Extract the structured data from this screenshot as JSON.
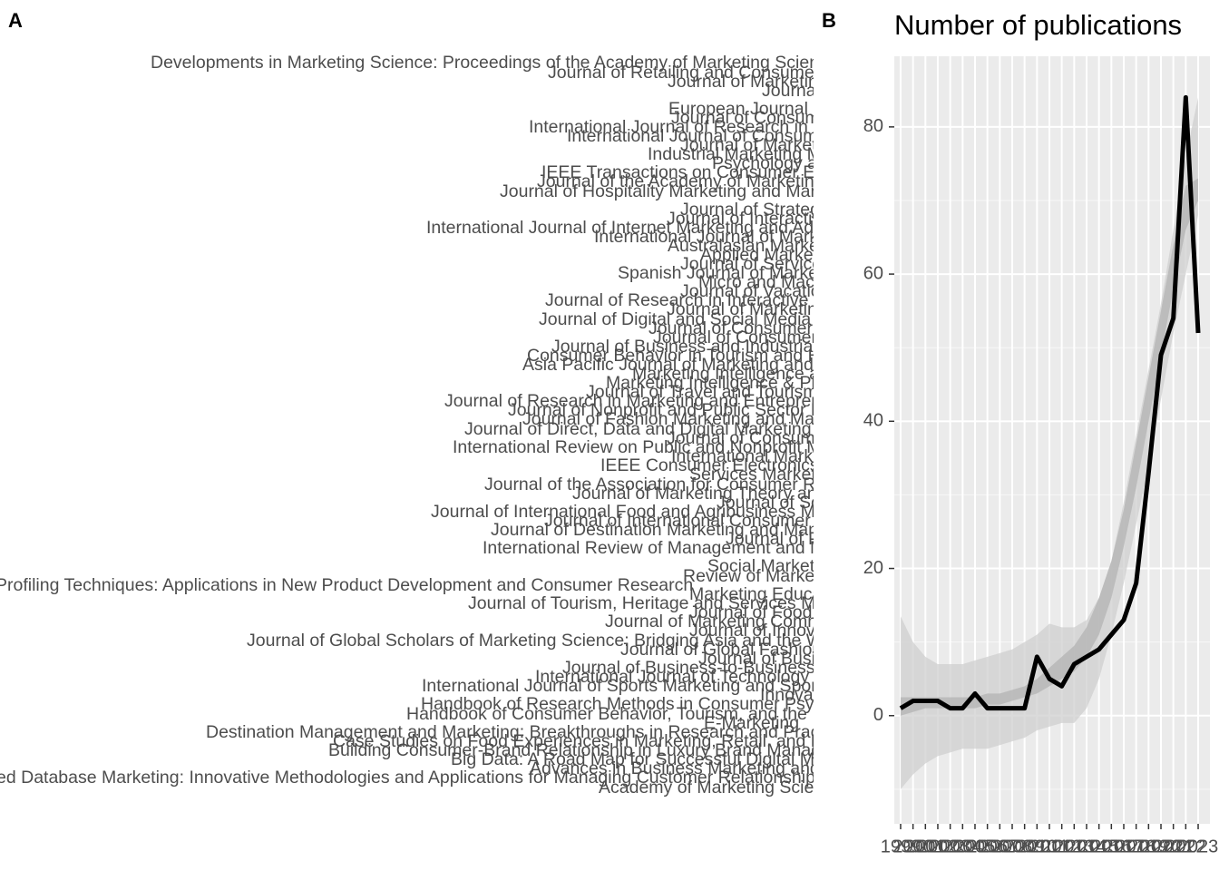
{
  "chart_data": [
    {
      "type": "text",
      "label": "A",
      "labels": [
        "Developments in Marketing Science: Proceedings of the Academy of Marketing Science",
        "Journal of Retailing and Consumer Services",
        "Journal of Marketing",
        "Journal of Business Research",
        "European Journal of Marketing",
        "Journal of Consumer Research",
        "International Journal of Research in Marketing",
        "International Journal of Consumer Studies",
        "Journal of Marketing Management",
        "Industrial Marketing Management",
        "Psychology and Marketing",
        "IEEE Transactions on Consumer Electronics",
        "Journal of the Academy of Marketing Science",
        "Journal of Hospitality Marketing and Management",
        "Journal of Strategic Marketing",
        "Journal of Interactive Marketing",
        "International Journal of Internet Marketing and Advertising",
        "International Journal of Market Research",
        "Australasian Marketing Journal",
        "Applied Marketing Analytics",
        "Journal of Services Marketing",
        "Spanish Journal of Marketing - ESIC",
        "Micro and Macro Marketing",
        "Journal of Vacation Marketing",
        "Journal of Research in Interactive Marketing",
        "Journal of Marketing Analytics",
        "Journal of Digital and Social Media Marketing",
        "Journal of Consumer Marketing",
        "Journal of Consumer Behaviour",
        "Journal of Business and Industrial Marketing",
        "Consumer Behavior in Tourism and Hospitality",
        "Asia Pacific Journal of Marketing and Logistics",
        "Marketing Intelligence and Planning",
        "Marketing Intelligence & Planning",
        "Journal of Travel and Tourism Marketing",
        "Journal of Research in Marketing and Entrepreneurship",
        "Journal of Nonprofit and Public Sector Marketing",
        "Journal of Fashion Marketing and Management",
        "Journal of Direct, Data and Digital Marketing Practice",
        "Journal of Consumer Psychology",
        "International Review on Public and Nonprofit Marketing",
        "International Marketing Review",
        "IEEE Consumer Electronics Magazine",
        "Services Marketing Quarterly",
        "Journal of the Association for Consumer Research",
        "Journal of Marketing Theory and Practice",
        "Journal of Social Marketing",
        "Journal of International Food and Agribusiness Marketing",
        "Journal of International Consumer Marketing",
        "Journal of Destination Marketing and Management",
        "Journal of Product and Brand Management",
        "International Review of Management and Marketing",
        "Review of Marketing Science",
        "Social Marketing Quarterly",
        "Profiling Techniques: Applications in New Product Development and Consumer Research",
        "Marketing Education Review",
        "Journal of Tourism, Heritage and Services Marketing",
        "Journal of Food Products Marketing",
        "Journal of Marketing Communications",
        "Journal of Innovation and Knowledge",
        "Journal of Global Scholars of Marketing Science: Bridging Asia and the World",
        "Journal of Global Fashion Marketing",
        "Journal of Business Economics",
        "Journal of Business-to-Business Marketing",
        "International Journal of Technology Marketing",
        "International Journal of Sports Marketing and Sponsorship",
        "Innovative Marketing",
        "Handbook of Research Methods in Consumer Psychology",
        "Handbook of Consumer Behavior, Tourism, and the Internet",
        "E-Marketing",
        "Destination Management and Marketing: Breakthroughs in Research and Practice",
        "Case Studies on Food Experiences in Marketing, Retail, and Events",
        "Building Consumer-Brand Relationship in Luxury Brand Management",
        "Big Data: A Road Map for Successful Digital Marketing",
        "Advances in Business Marketing and Purchasing",
        "ed Database Marketing: Innovative Methodologies and Applications for Managing Customer Relationships",
        "Academy of Marketing Science Review"
      ]
    },
    {
      "type": "line",
      "label": "B",
      "title": "Number of publications",
      "x": [
        1999,
        2000,
        2001,
        2002,
        2003,
        2004,
        2005,
        2006,
        2007,
        2008,
        2009,
        2010,
        2011,
        2012,
        2013,
        2014,
        2015,
        2016,
        2017,
        2018,
        2019,
        2020,
        2021,
        2022,
        2023
      ],
      "xlim": [
        1998.49,
        2023.95
      ],
      "xticks": [
        1999,
        2000,
        2001,
        2002,
        2003,
        2004,
        2005,
        2006,
        2007,
        2008,
        2009,
        2010,
        2011,
        2012,
        2013,
        2014,
        2015,
        2016,
        2017,
        2018,
        2019,
        2020,
        2021,
        2022,
        2023
      ],
      "ylim": [
        -14.7,
        89.6
      ],
      "yticks": [
        0,
        20,
        40,
        60,
        80
      ],
      "grid": true,
      "background": "#ebebeb",
      "bands": [
        {
          "color": "#cfcfcf",
          "lower": [
            -10,
            -8,
            -6.5,
            -5.5,
            -5,
            -4.5,
            -4.5,
            -4.5,
            -4,
            -3.5,
            -3,
            -2,
            -1.5,
            -1,
            -1,
            1,
            5,
            11,
            18,
            26,
            34,
            43,
            52,
            60,
            68
          ],
          "upper": [
            13.5,
            10,
            8,
            7,
            7,
            7,
            7.5,
            8,
            8.5,
            9,
            10,
            11,
            12.5,
            12,
            12,
            13,
            16,
            21,
            29,
            38,
            47,
            56,
            66,
            76,
            84
          ]
        },
        {
          "color": "#b3b3b3",
          "lower": [
            0,
            0.5,
            1,
            1,
            1,
            1,
            1,
            1.5,
            1.5,
            2,
            2.5,
            3,
            4,
            5,
            6,
            8,
            11,
            16,
            23,
            31,
            40,
            49,
            58,
            66,
            70
          ],
          "upper": [
            2.5,
            2.5,
            2.5,
            2.5,
            2.5,
            2.5,
            2.5,
            3,
            3,
            3.5,
            4,
            5,
            6.5,
            8,
            9.5,
            12,
            16,
            21,
            28,
            37,
            46,
            55,
            64,
            72,
            73
          ]
        }
      ],
      "series": [
        {
          "color": "#000000",
          "values": [
            1,
            2,
            2,
            2,
            1,
            1,
            3,
            1,
            1,
            1,
            1,
            8,
            5,
            4,
            7,
            8,
            9,
            11,
            13,
            18,
            33,
            49,
            54,
            84,
            52
          ]
        }
      ]
    }
  ]
}
